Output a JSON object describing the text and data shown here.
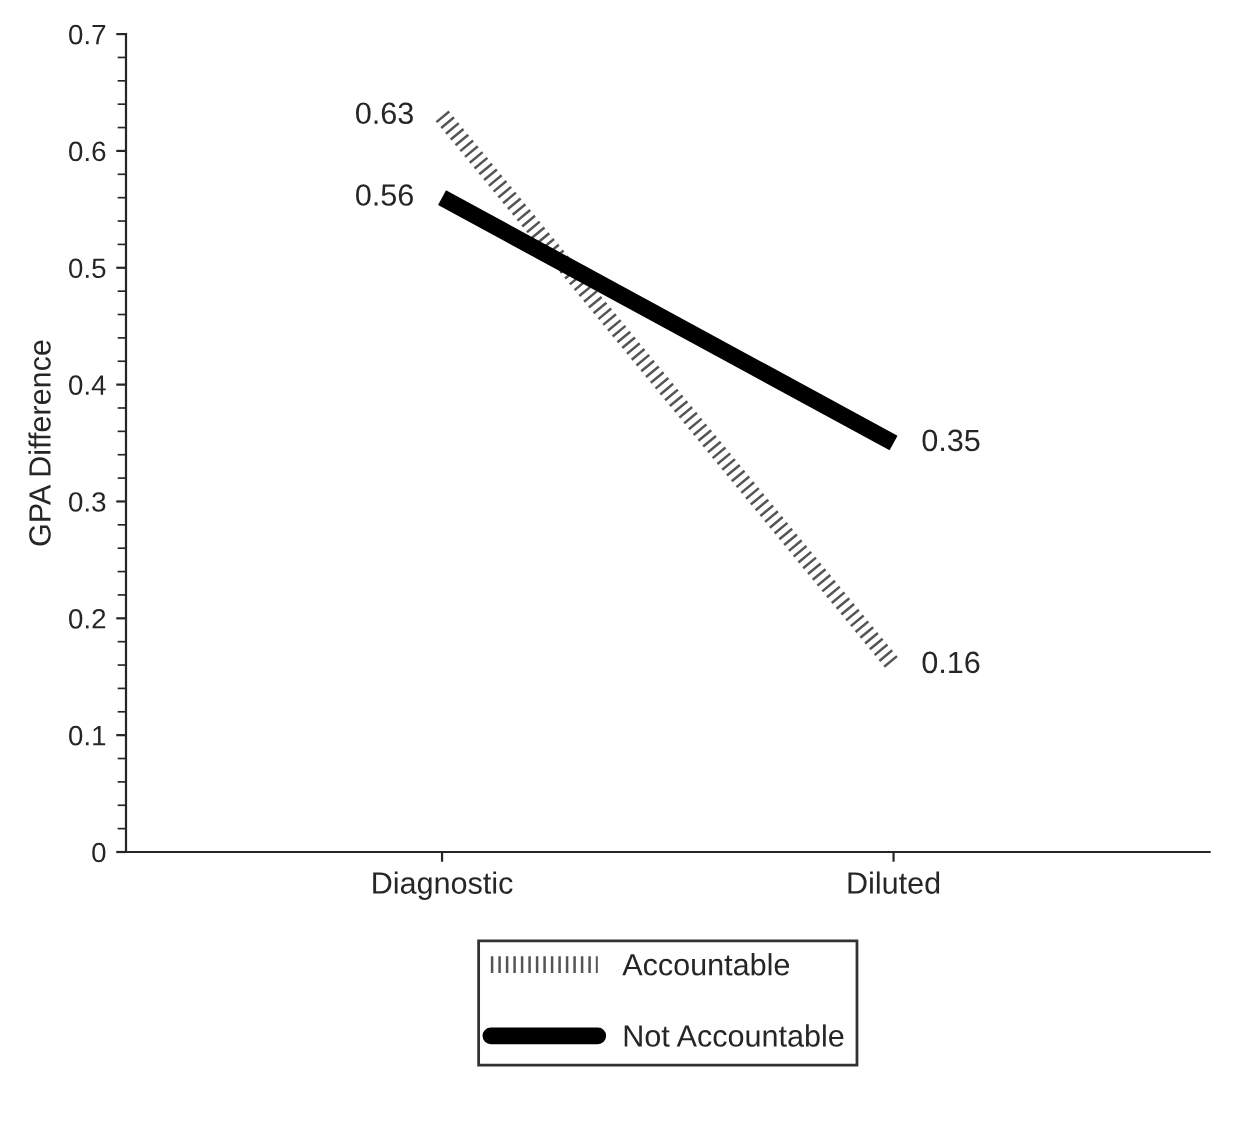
{
  "chart_data": {
    "type": "line",
    "ylabel": "GPA Difference",
    "categories": [
      "Diagnostic",
      "Diluted"
    ],
    "series": [
      {
        "name": "Accountable",
        "color": "#555555",
        "values": [
          0.63,
          0.16
        ],
        "line_style": "dotted"
      },
      {
        "name": "Not Accountable",
        "color": "#000000",
        "values": [
          0.56,
          0.35
        ],
        "line_style": "solid"
      }
    ],
    "ylim": [
      0,
      0.7
    ],
    "yticks": [
      {
        "value": 0,
        "label": "0"
      },
      0.1,
      0.2,
      0.3,
      0.4,
      0.5,
      0.6,
      0.7
    ],
    "data_labels": true,
    "grid": false,
    "legend": "bottom",
    "marker": "none"
  }
}
